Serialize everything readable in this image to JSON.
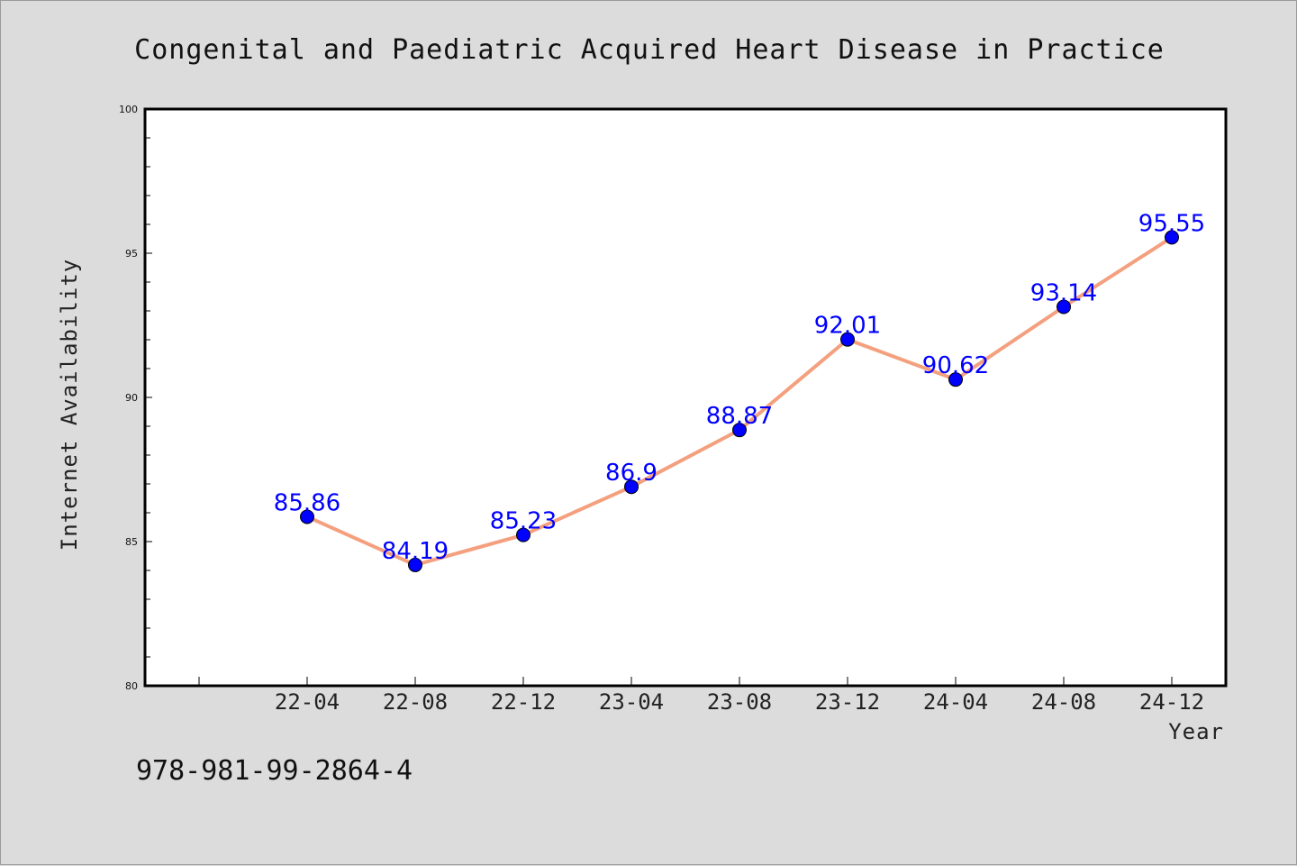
{
  "chart_data": {
    "type": "line",
    "title": "Congenital and Paediatric Acquired Heart Disease in Practice",
    "xlabel": "Year",
    "ylabel": "Internet Availability",
    "categories": [
      "22-04",
      "22-08",
      "22-12",
      "23-04",
      "23-08",
      "23-12",
      "24-04",
      "24-08",
      "24-12"
    ],
    "values": [
      85.86,
      84.19,
      85.23,
      86.9,
      88.87,
      92.01,
      90.62,
      93.14,
      95.55
    ],
    "data_labels": [
      "85.86",
      "84.19",
      "85.23",
      "86.9",
      "88.87",
      "92.01",
      "90.62",
      "93.14",
      "95.55"
    ],
    "ylim": [
      80,
      100
    ],
    "yticks": [
      "80",
      "85",
      "90",
      "95",
      "100"
    ],
    "grid": false,
    "legend": "none",
    "line_color": "#f4a07f",
    "marker_color": "#0000ff",
    "label_color": "#0000ff",
    "background_color": "#dcdcdc",
    "plot_background_color": "#ffffff"
  },
  "footer": {
    "isbn": "978-981-99-2864-4"
  }
}
